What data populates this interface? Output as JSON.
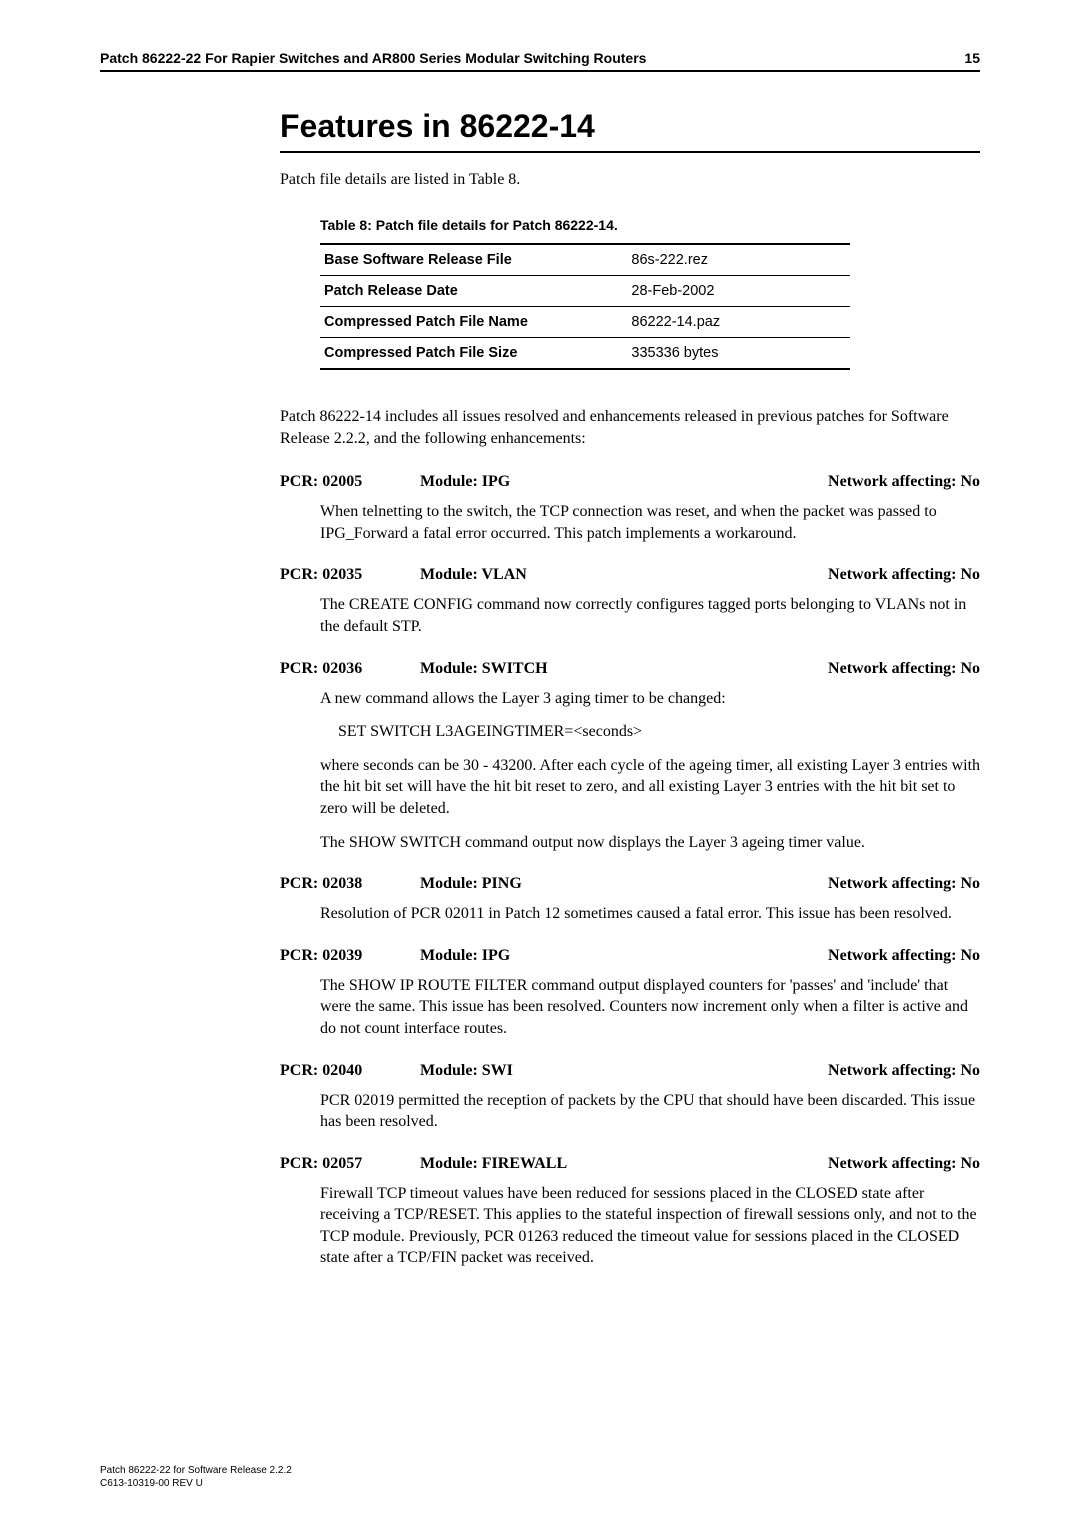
{
  "header": {
    "title": "Patch 86222-22 For Rapier Switches and AR800 Series Modular Switching Routers",
    "page_number": "15"
  },
  "section": {
    "title": "Features in 86222-14",
    "intro": "Patch file details are listed in Table 8."
  },
  "table": {
    "caption": "Table 8: Patch file details for Patch 86222-14.",
    "rows": [
      {
        "label": "Base Software Release File",
        "value": "86s-222.rez"
      },
      {
        "label": "Patch Release Date",
        "value": "28-Feb-2002"
      },
      {
        "label": "Compressed Patch File Name",
        "value": "86222-14.paz"
      },
      {
        "label": "Compressed Patch File Size",
        "value": "335336 bytes"
      }
    ],
    "label_col_width": "58%",
    "border_color": "#000000"
  },
  "summary_para": "Patch 86222-14 includes all issues resolved and enhancements released in previous patches for Software Release 2.2.2, and the following enhancements:",
  "pcrs": [
    {
      "pcr": "PCR: 02005",
      "module": "Module: IPG",
      "affecting": "Network affecting: No",
      "body": [
        "When telnetting to the switch, the TCP connection was reset, and when the packet was passed to IPG_Forward a fatal error occurred. This patch implements a workaround."
      ]
    },
    {
      "pcr": "PCR: 02035",
      "module": "Module: VLAN",
      "affecting": "Network affecting: No",
      "body": [
        "The CREATE CONFIG command now correctly configures tagged ports belonging to VLANs not in the default STP."
      ]
    },
    {
      "pcr": "PCR: 02036",
      "module": "Module: SWITCH",
      "affecting": "Network affecting: No",
      "body": [
        "A new command allows the Layer 3 aging timer to be changed:",
        "SET SWITCH L3AGEINGTIMER=<seconds>",
        "where seconds can be 30 - 43200. After each cycle of the ageing timer, all existing Layer 3 entries with the hit bit set will have the hit bit reset to zero, and all existing Layer 3 entries with the hit bit set to zero will be deleted.",
        "The SHOW SWITCH command output now displays the Layer 3 ageing timer value."
      ],
      "cmd_indices": [
        1
      ]
    },
    {
      "pcr": "PCR: 02038",
      "module": "Module: PING",
      "affecting": "Network affecting: No",
      "body": [
        "Resolution of PCR 02011 in Patch 12 sometimes caused a fatal error. This issue has been resolved."
      ]
    },
    {
      "pcr": "PCR: 02039",
      "module": "Module: IPG",
      "affecting": "Network affecting: No",
      "body": [
        "The SHOW IP ROUTE FILTER command output displayed counters for 'passes' and 'include' that were the same. This issue has been resolved. Counters now increment only when a filter is active and do not count interface routes."
      ]
    },
    {
      "pcr": "PCR: 02040",
      "module": "Module: SWI",
      "affecting": "Network affecting: No",
      "body": [
        "PCR 02019 permitted the reception of packets by the CPU that should have been discarded. This issue has been resolved."
      ]
    },
    {
      "pcr": "PCR: 02057",
      "module": "Module: FIREWALL",
      "affecting": "Network affecting: No",
      "body": [
        "Firewall TCP timeout values have been reduced for sessions placed in the CLOSED state after receiving a TCP/RESET. This applies to the stateful inspection of firewall sessions only, and not to the TCP module. Previously, PCR 01263 reduced the timeout value for sessions placed in the CLOSED state after a TCP/FIN packet was received."
      ]
    }
  ],
  "footer": {
    "line1": "Patch 86222-22 for Software Release 2.2.2",
    "line2": "C613-10319-00 REV U"
  },
  "style": {
    "page_bg": "#ffffff",
    "text_color": "#000000",
    "title_fontsize_pt": 32,
    "body_fontsize_pt": 16,
    "header_fontsize_pt": 14,
    "table_font": "Arial",
    "body_font": "Palatino"
  }
}
